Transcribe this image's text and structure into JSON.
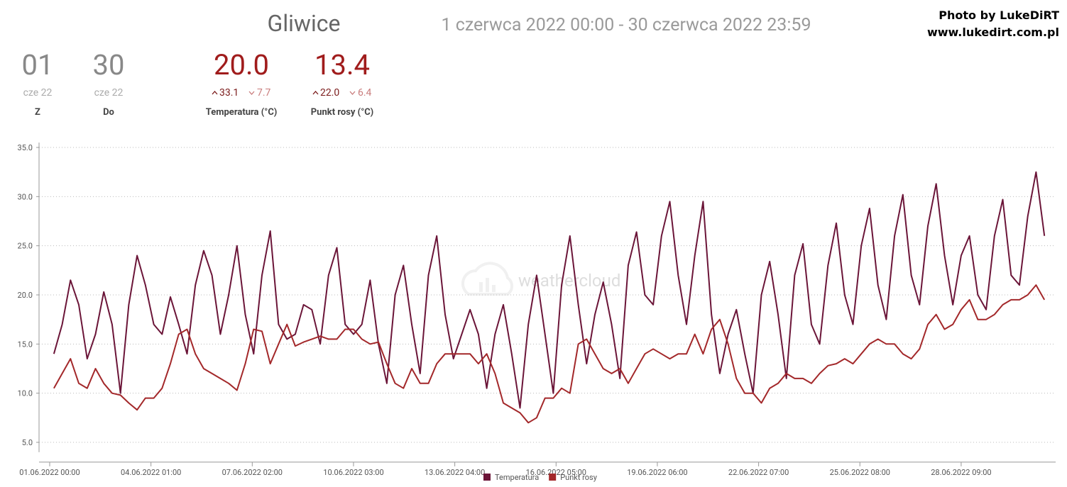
{
  "header": {
    "title": "Gliwice",
    "range": "1 czerwca 2022 00:00 - 30 czerwca 2022 23:59",
    "credit": [
      "Photo by LukeDiRT",
      "www.lukedirt.com.pl"
    ]
  },
  "stats": [
    {
      "value": "01",
      "sub": "cze 22",
      "label": "Z"
    },
    {
      "value": "30",
      "sub": "cze 22",
      "label": "Do"
    },
    {
      "value": "20.0",
      "max": "33.1",
      "min": "7.7",
      "label": "Temperatura (°C)"
    },
    {
      "value": "13.4",
      "max": "22.0",
      "min": "6.4",
      "label": "Punkt rosy (°C)"
    }
  ],
  "chart_data": {
    "type": "line",
    "watermark": "weathercloud",
    "xlim": [
      "01.06.2022 00:00",
      "30.06.2022 23:59"
    ],
    "xticks": [
      "01.06.2022 00:00",
      "04.06.2022 01:00",
      "07.06.2022 02:00",
      "10.06.2022 03:00",
      "13.06.2022 04:00",
      "16.06.2022 05:00",
      "19.06.2022 06:00",
      "22.06.2022 07:00",
      "25.06.2022 08:00",
      "28.06.2022 09:00"
    ],
    "ylim": [
      4,
      35.5
    ],
    "yticks": [
      {
        "value": 5,
        "label": "5.0"
      },
      {
        "value": 10,
        "label": "10.0"
      },
      {
        "value": 15,
        "label": "15.0"
      },
      {
        "value": 20,
        "label": "20.0"
      },
      {
        "value": 25,
        "label": "25.0"
      },
      {
        "value": 30,
        "label": "30.0"
      },
      {
        "value": 35,
        "label": "35.0"
      }
    ],
    "grid": true,
    "x": [
      "01.06.2022 03:00",
      "01.06.2022 09:00",
      "01.06.2022 15:00",
      "01.06.2022 21:00",
      "02.06.2022 03:00",
      "02.06.2022 09:00",
      "02.06.2022 15:00",
      "02.06.2022 21:00",
      "03.06.2022 03:00",
      "03.06.2022 09:00",
      "03.06.2022 15:00",
      "03.06.2022 21:00",
      "04.06.2022 03:00",
      "04.06.2022 09:00",
      "04.06.2022 15:00",
      "04.06.2022 21:00",
      "05.06.2022 03:00",
      "05.06.2022 09:00",
      "05.06.2022 15:00",
      "05.06.2022 21:00",
      "06.06.2022 03:00",
      "06.06.2022 09:00",
      "06.06.2022 15:00",
      "06.06.2022 21:00",
      "07.06.2022 03:00",
      "07.06.2022 09:00",
      "07.06.2022 15:00",
      "07.06.2022 21:00",
      "08.06.2022 03:00",
      "08.06.2022 09:00",
      "08.06.2022 15:00",
      "08.06.2022 21:00",
      "09.06.2022 03:00",
      "09.06.2022 09:00",
      "09.06.2022 15:00",
      "09.06.2022 21:00",
      "10.06.2022 03:00",
      "10.06.2022 09:00",
      "10.06.2022 15:00",
      "10.06.2022 21:00",
      "11.06.2022 03:00",
      "11.06.2022 09:00",
      "11.06.2022 15:00",
      "11.06.2022 21:00",
      "12.06.2022 03:00",
      "12.06.2022 09:00",
      "12.06.2022 15:00",
      "12.06.2022 21:00",
      "13.06.2022 03:00",
      "13.06.2022 09:00",
      "13.06.2022 15:00",
      "13.06.2022 21:00",
      "14.06.2022 03:00",
      "14.06.2022 09:00",
      "14.06.2022 15:00",
      "14.06.2022 21:00",
      "15.06.2022 03:00",
      "15.06.2022 09:00",
      "15.06.2022 15:00",
      "15.06.2022 21:00",
      "16.06.2022 03:00",
      "16.06.2022 09:00",
      "16.06.2022 15:00",
      "16.06.2022 21:00",
      "17.06.2022 03:00",
      "17.06.2022 09:00",
      "17.06.2022 15:00",
      "17.06.2022 21:00",
      "18.06.2022 03:00",
      "18.06.2022 09:00",
      "18.06.2022 15:00",
      "18.06.2022 21:00",
      "19.06.2022 03:00",
      "19.06.2022 09:00",
      "19.06.2022 15:00",
      "19.06.2022 21:00",
      "20.06.2022 03:00",
      "20.06.2022 09:00",
      "20.06.2022 15:00",
      "20.06.2022 21:00",
      "21.06.2022 03:00",
      "21.06.2022 09:00",
      "21.06.2022 15:00",
      "21.06.2022 21:00",
      "22.06.2022 03:00",
      "22.06.2022 09:00",
      "22.06.2022 15:00",
      "22.06.2022 21:00",
      "23.06.2022 03:00",
      "23.06.2022 09:00",
      "23.06.2022 15:00",
      "23.06.2022 21:00",
      "24.06.2022 03:00",
      "24.06.2022 09:00",
      "24.06.2022 15:00",
      "24.06.2022 21:00",
      "25.06.2022 03:00",
      "25.06.2022 09:00",
      "25.06.2022 15:00",
      "25.06.2022 21:00",
      "26.06.2022 03:00",
      "26.06.2022 09:00",
      "26.06.2022 15:00",
      "26.06.2022 21:00",
      "27.06.2022 03:00",
      "27.06.2022 09:00",
      "27.06.2022 15:00",
      "27.06.2022 21:00",
      "28.06.2022 03:00",
      "28.06.2022 09:00",
      "28.06.2022 15:00",
      "28.06.2022 21:00",
      "29.06.2022 03:00",
      "29.06.2022 09:00",
      "29.06.2022 15:00",
      "29.06.2022 21:00",
      "30.06.2022 03:00",
      "30.06.2022 09:00",
      "30.06.2022 15:00",
      "30.06.2022 21:00"
    ],
    "series": [
      {
        "name": "Temperatura",
        "color": "#6b1538",
        "values": [
          14,
          17,
          21.5,
          19,
          13.5,
          16,
          20.3,
          17,
          10,
          19,
          24,
          21,
          17,
          16,
          19.8,
          17,
          14,
          21,
          24.5,
          22,
          16,
          20,
          25,
          18,
          14,
          22,
          26.5,
          17,
          15.5,
          16,
          19,
          18.5,
          15,
          22,
          24.8,
          17,
          16,
          17,
          21.5,
          15,
          11,
          20,
          23,
          17,
          12,
          22,
          26,
          18,
          13.5,
          16,
          18.5,
          16,
          10.5,
          16,
          19,
          14,
          8.5,
          17,
          22,
          16,
          10,
          21,
          26,
          19,
          13,
          18,
          21.3,
          17,
          11.5,
          23,
          26.4,
          20,
          19,
          26,
          29.5,
          22,
          17,
          24,
          29.5,
          18,
          12,
          16,
          18.5,
          14,
          10,
          20,
          23.4,
          18,
          11.5,
          22,
          25.2,
          17,
          15,
          23,
          27.3,
          20,
          17,
          25,
          28.8,
          21,
          17.5,
          26,
          30.2,
          22,
          19,
          27,
          31.3,
          24,
          19,
          24,
          26,
          20,
          18.5,
          26,
          29.7,
          22,
          21,
          28,
          32.5,
          26
        ]
      },
      {
        "name": "Punkt rosy",
        "color": "#a3282a",
        "values": [
          10.5,
          12,
          13.5,
          11,
          10.5,
          12.5,
          11,
          10,
          9.8,
          9,
          8.3,
          9.5,
          9.5,
          10.5,
          13,
          16,
          16.5,
          14,
          12.5,
          12,
          11.5,
          11,
          10.3,
          13,
          16.5,
          16.3,
          13,
          15,
          17,
          14.8,
          15.2,
          15.5,
          15.8,
          15.5,
          15.5,
          16.5,
          16.5,
          15.5,
          15,
          15.2,
          13,
          11,
          10.5,
          12.5,
          11,
          11,
          13,
          14,
          14,
          14,
          14,
          13,
          14,
          12,
          9,
          8.5,
          8,
          7,
          7.5,
          9.5,
          9.5,
          10.5,
          10,
          15,
          15.5,
          14,
          12.5,
          12,
          12.5,
          11,
          12.5,
          14,
          14.5,
          14,
          13.5,
          14,
          14,
          16,
          14,
          16.5,
          17.5,
          15,
          11.5,
          10,
          10,
          9,
          10.5,
          11,
          12,
          11.5,
          11.5,
          11,
          12,
          12.8,
          13,
          13.5,
          13,
          14,
          15,
          15.5,
          15,
          15,
          14,
          13.5,
          14.5,
          17,
          18,
          16.5,
          17,
          18.5,
          19.5,
          17.5,
          17.5,
          18,
          19,
          19.5,
          19.5,
          20,
          21,
          19.5
        ]
      }
    ]
  }
}
